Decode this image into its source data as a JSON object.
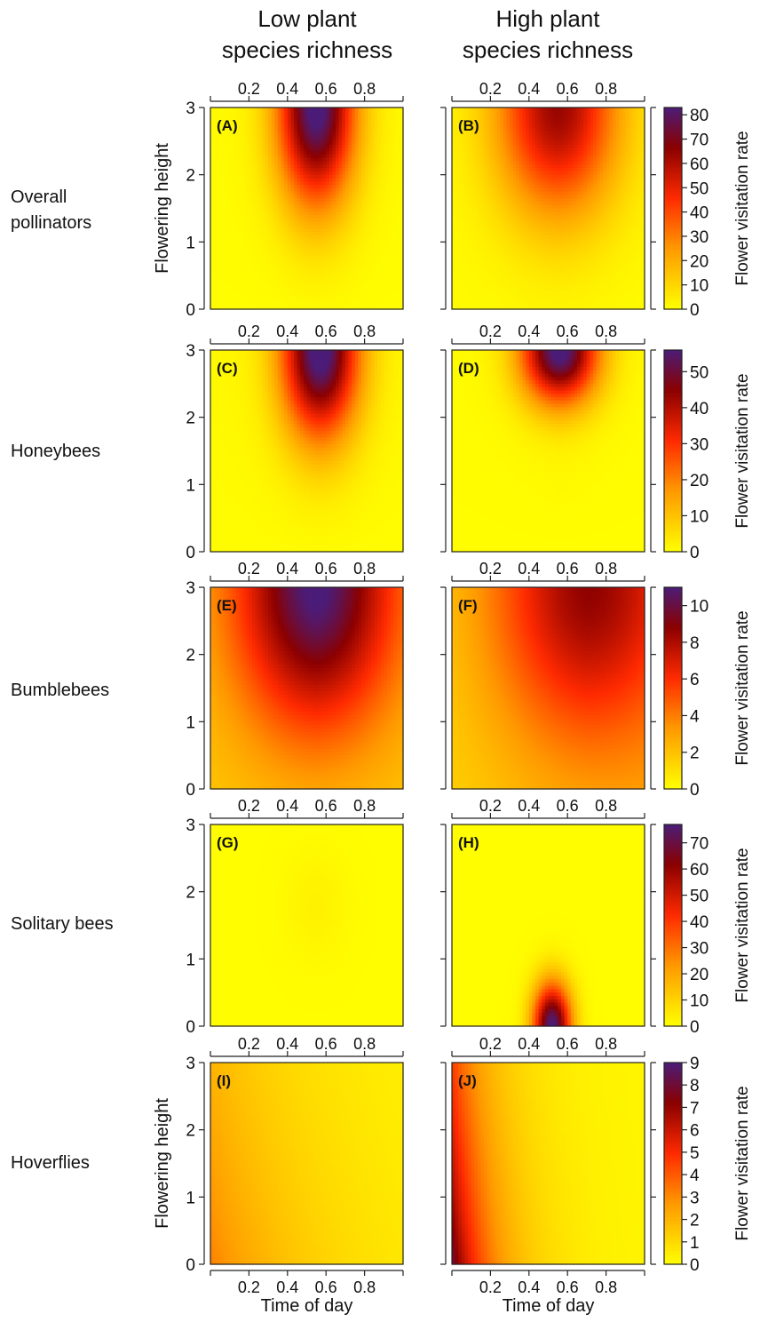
{
  "column_titles": [
    {
      "line1": "Low plant",
      "line2": "species richness"
    },
    {
      "line1": "High plant",
      "line2": "species richness"
    }
  ],
  "row_labels": [
    {
      "lines": [
        "Overall",
        "pollinators"
      ]
    },
    {
      "lines": [
        "Honeybees"
      ]
    },
    {
      "lines": [
        "Bumblebees"
      ]
    },
    {
      "lines": [
        "Solitary bees"
      ]
    },
    {
      "lines": [
        "Hoverflies"
      ]
    }
  ],
  "axis_labels": {
    "ylabel": "Flowering height",
    "xlabel": "Time of day",
    "colorbar_label": "Flower visitation rate"
  },
  "colors": {
    "scale_low": "#ffff00",
    "scale_mid1": "#ff9900",
    "scale_mid2": "#ff2a00",
    "scale_high": "#8b0000",
    "scale_max": "#4b1c78"
  },
  "chart_data": [
    {
      "type": "heatmap",
      "panel": "(A)",
      "row": "Overall pollinators",
      "column": "Low plant species richness",
      "xlabel": "",
      "ylabel": "Flowering height",
      "xticks": [
        0.2,
        0.4,
        0.6,
        0.8
      ],
      "yticks": [
        0,
        1,
        2,
        3
      ],
      "xlim": [
        0,
        1
      ],
      "ylim": [
        0,
        3
      ],
      "colorbar": {
        "ticks": [
          0,
          10,
          20,
          30,
          40,
          50,
          60,
          70,
          80
        ],
        "range": [
          0,
          83
        ]
      },
      "surface": {
        "max": 83,
        "peak_x": 0.55,
        "peak_y": 3.0,
        "sx": 0.14,
        "sy": 1.0,
        "base": 0.5,
        "xslope": 0,
        "yslope": 3
      }
    },
    {
      "type": "heatmap",
      "panel": "(B)",
      "row": "Overall pollinators",
      "column": "High plant species richness",
      "xticks": [
        0.2,
        0.4,
        0.6,
        0.8
      ],
      "yticks": [
        0,
        1,
        2,
        3
      ],
      "xlim": [
        0,
        1
      ],
      "ylim": [
        0,
        3
      ],
      "colorbar": {
        "ticks": [
          0,
          10,
          20,
          30,
          40,
          50,
          60,
          70,
          80
        ],
        "range": [
          0,
          83
        ]
      },
      "surface": {
        "max": 60,
        "peak_x": 0.55,
        "peak_y": 3.0,
        "sx": 0.22,
        "sy": 1.1,
        "base": 1,
        "xslope": 0,
        "yslope": 3
      }
    },
    {
      "type": "heatmap",
      "panel": "(C)",
      "row": "Honeybees",
      "column": "Low plant species richness",
      "xticks": [
        0.2,
        0.4,
        0.6,
        0.8
      ],
      "yticks": [
        0,
        1,
        2,
        3
      ],
      "xlim": [
        0,
        1
      ],
      "ylim": [
        0,
        3
      ],
      "colorbar": {
        "ticks": [
          0,
          10,
          20,
          30,
          40,
          50
        ],
        "range": [
          0,
          56
        ]
      },
      "surface": {
        "max": 56,
        "peak_x": 0.57,
        "peak_y": 3.0,
        "sx": 0.14,
        "sy": 0.9,
        "base": 0.5,
        "xslope": 0,
        "yslope": 3
      }
    },
    {
      "type": "heatmap",
      "panel": "(D)",
      "row": "Honeybees",
      "column": "High plant species richness",
      "xticks": [
        0.2,
        0.4,
        0.6,
        0.8
      ],
      "yticks": [
        0,
        1,
        2,
        3
      ],
      "xlim": [
        0,
        1
      ],
      "ylim": [
        0,
        3
      ],
      "colorbar": {
        "ticks": [
          0,
          10,
          20,
          30,
          40,
          50
        ],
        "range": [
          0,
          56
        ]
      },
      "surface": {
        "max": 56,
        "peak_x": 0.56,
        "peak_y": 3.0,
        "sx": 0.14,
        "sy": 0.55,
        "base": 0.3,
        "xslope": 0,
        "yslope": 2
      }
    },
    {
      "type": "heatmap",
      "panel": "(E)",
      "row": "Bumblebees",
      "column": "Low plant species richness",
      "xticks": [
        0.2,
        0.4,
        0.6,
        0.8
      ],
      "yticks": [
        0,
        1,
        2,
        3
      ],
      "xlim": [
        0,
        1
      ],
      "ylim": [
        0,
        3
      ],
      "colorbar": {
        "ticks": [
          0,
          2,
          4,
          6,
          8,
          10
        ],
        "range": [
          0,
          11
        ]
      },
      "surface": {
        "max": 8.5,
        "peak_x": 0.55,
        "peak_y": 3.0,
        "sx": 0.3,
        "sy": 1.5,
        "base": 1.8,
        "xslope": 0,
        "yslope": 1
      }
    },
    {
      "type": "heatmap",
      "panel": "(F)",
      "row": "Bumblebees",
      "column": "High plant species richness",
      "xticks": [
        0.2,
        0.4,
        0.6,
        0.8
      ],
      "yticks": [
        0,
        1,
        2,
        3
      ],
      "xlim": [
        0,
        1
      ],
      "ylim": [
        0,
        3
      ],
      "colorbar": {
        "ticks": [
          0,
          2,
          4,
          6,
          8,
          10
        ],
        "range": [
          0,
          11
        ]
      },
      "surface": {
        "max": 6.0,
        "peak_x": 0.7,
        "peak_y": 3.0,
        "sx": 0.35,
        "sy": 1.6,
        "base": 1.5,
        "xslope": 1.0,
        "yslope": 0.5
      }
    },
    {
      "type": "heatmap",
      "panel": "(G)",
      "row": "Solitary bees",
      "column": "Low plant species richness",
      "xticks": [
        0.2,
        0.4,
        0.6,
        0.8
      ],
      "yticks": [
        0,
        1,
        2,
        3
      ],
      "xlim": [
        0,
        1
      ],
      "ylim": [
        0,
        3
      ],
      "colorbar": {
        "ticks": [
          0,
          10,
          20,
          30,
          40,
          50,
          60,
          70
        ],
        "range": [
          0,
          77
        ]
      },
      "surface": {
        "max": 2.5,
        "peak_x": 0.55,
        "peak_y": 1.8,
        "sx": 0.12,
        "sy": 0.6,
        "base": 0.5,
        "xslope": 0,
        "yslope": 0
      }
    },
    {
      "type": "heatmap",
      "panel": "(H)",
      "row": "Solitary bees",
      "column": "High plant species richness",
      "xticks": [
        0.2,
        0.4,
        0.6,
        0.8
      ],
      "yticks": [
        0,
        1,
        2,
        3
      ],
      "xlim": [
        0,
        1
      ],
      "ylim": [
        0,
        3
      ],
      "colorbar": {
        "ticks": [
          0,
          10,
          20,
          30,
          40,
          50,
          60,
          70
        ],
        "range": [
          0,
          77
        ]
      },
      "surface": {
        "max": 77,
        "peak_x": 0.52,
        "peak_y": 0.0,
        "sx": 0.07,
        "sy": 0.45,
        "base": 0.5,
        "xslope": 0,
        "yslope": 0
      }
    },
    {
      "type": "heatmap",
      "panel": "(I)",
      "row": "Hoverflies",
      "column": "Low plant species richness",
      "xlabel": "Time of day",
      "ylabel": "Flowering height",
      "xticks": [
        0.2,
        0.4,
        0.6,
        0.8
      ],
      "yticks": [
        0,
        1,
        2,
        3
      ],
      "xlim": [
        0,
        1
      ],
      "ylim": [
        0,
        3
      ],
      "colorbar": {
        "ticks": [
          0,
          1,
          2,
          3,
          4,
          5,
          6,
          7,
          8,
          9
        ],
        "range": [
          0,
          9
        ]
      },
      "surface": {
        "mode": "corner",
        "max": 3.2,
        "min": 0.15,
        "decay_x": 0.55,
        "decay_y": 6.0
      }
    },
    {
      "type": "heatmap",
      "panel": "(J)",
      "row": "Hoverflies",
      "column": "High plant species richness",
      "xlabel": "Time of day",
      "xticks": [
        0.2,
        0.4,
        0.6,
        0.8
      ],
      "yticks": [
        0,
        1,
        2,
        3
      ],
      "xlim": [
        0,
        1
      ],
      "ylim": [
        0,
        3
      ],
      "colorbar": {
        "ticks": [
          0,
          1,
          2,
          3,
          4,
          5,
          6,
          7,
          8,
          9
        ],
        "range": [
          0,
          9
        ]
      },
      "surface": {
        "mode": "corner",
        "max": 8.2,
        "min": 0.2,
        "decay_x": 0.22,
        "decay_y": 5.0
      }
    }
  ]
}
